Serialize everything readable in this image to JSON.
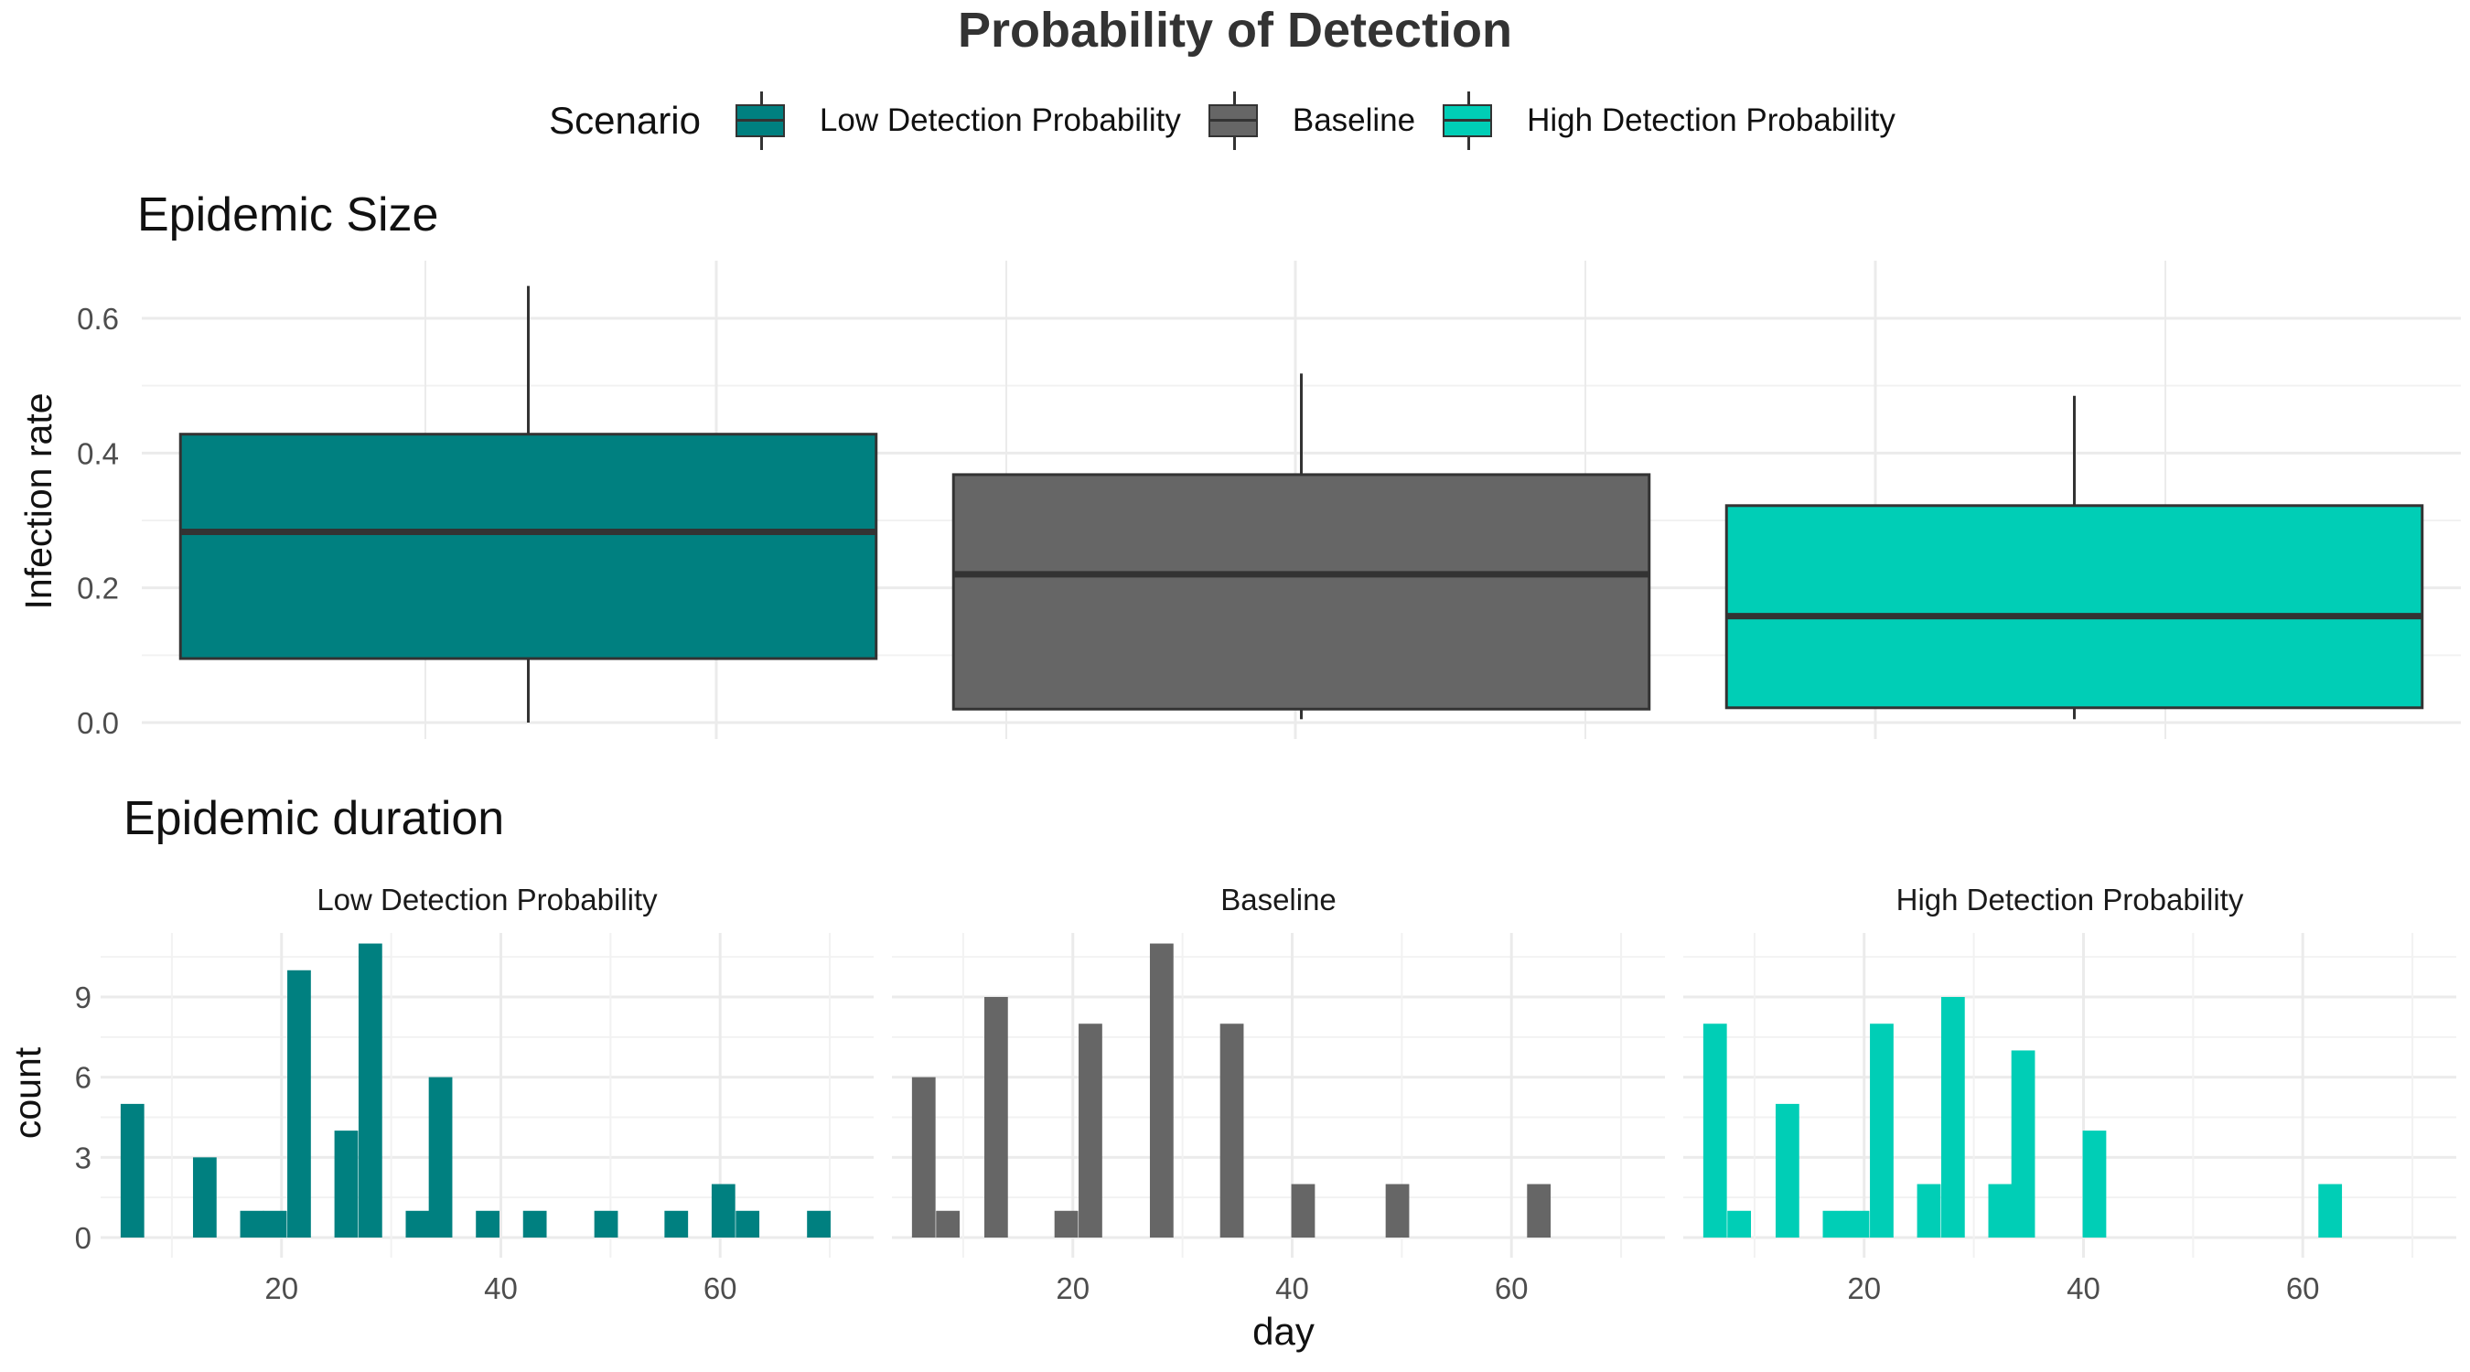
{
  "title": "Probability of Detection",
  "legend": {
    "title": "Scenario",
    "items": [
      {
        "label": "Low Detection Probability",
        "color": "#008080"
      },
      {
        "label": "Baseline",
        "color": "#666666"
      },
      {
        "label": "High Detection Probability",
        "color": "#00CEB6"
      }
    ]
  },
  "chart_data": [
    {
      "type": "box",
      "title": "Epidemic Size",
      "ylabel": "Infection rate",
      "xlabel": "",
      "ylim": [
        0,
        0.65
      ],
      "yticks": [
        "0.0",
        "0.2",
        "0.4",
        "0.6"
      ],
      "grid": true,
      "categories": [
        "Low Detection Probability",
        "Baseline",
        "High Detection Probability"
      ],
      "boxes": [
        {
          "name": "Low Detection Probability",
          "color": "#008080",
          "min": 0.0,
          "q1": 0.095,
          "median": 0.283,
          "q3": 0.428,
          "max": 0.648
        },
        {
          "name": "Baseline",
          "color": "#666666",
          "min": 0.005,
          "q1": 0.02,
          "median": 0.22,
          "q3": 0.368,
          "max": 0.518
        },
        {
          "name": "High Detection Probability",
          "color": "#00CEB6",
          "min": 0.005,
          "q1": 0.022,
          "median": 0.158,
          "q3": 0.322,
          "max": 0.485
        }
      ]
    },
    {
      "type": "bar",
      "subtype": "histogram",
      "title": "Epidemic duration",
      "xlabel": "day",
      "ylabel": "count",
      "xlim": [
        3.5,
        74
      ],
      "ylim": [
        0,
        11.5
      ],
      "xticks": [
        "20",
        "40",
        "60"
      ],
      "yticks": [
        "0",
        "3",
        "6",
        "9"
      ],
      "bin_width": 2.15,
      "grid": true,
      "facets": [
        {
          "name": "Low Detection Probability",
          "color": "#008080",
          "x": [
            6.4,
            13,
            17.3,
            19.4,
            21.6,
            25.9,
            28.1,
            32.4,
            34.5,
            38.8,
            43.1,
            49.6,
            56,
            60.3,
            62.5,
            69
          ],
          "values": [
            5,
            3,
            1,
            1,
            10,
            4,
            11,
            1,
            6,
            1,
            1,
            1,
            1,
            2,
            1,
            1
          ]
        },
        {
          "name": "Baseline",
          "color": "#666666",
          "x": [
            6.4,
            8.6,
            13,
            19.4,
            21.6,
            28.1,
            34.5,
            41,
            49.6,
            62.5
          ],
          "values": [
            6,
            1,
            9,
            1,
            8,
            11,
            8,
            2,
            2,
            2
          ]
        },
        {
          "name": "High Detection Probability",
          "color": "#00CEB6",
          "x": [
            6.4,
            8.6,
            13,
            17.3,
            19.4,
            21.6,
            25.9,
            28.1,
            32.4,
            34.5,
            41,
            62.5
          ],
          "values": [
            8,
            1,
            5,
            1,
            1,
            8,
            2,
            9,
            2,
            7,
            4,
            2
          ]
        }
      ]
    }
  ]
}
